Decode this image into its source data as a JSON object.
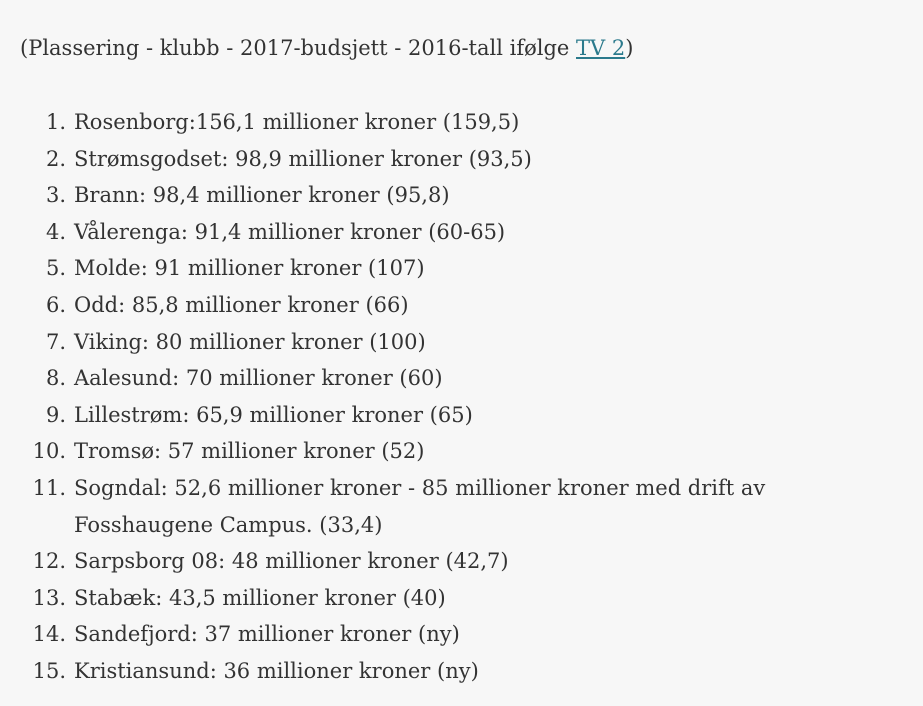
{
  "intro": {
    "prefix": "(Plassering - klubb - 2017-budsjett - 2016-tall ifølge ",
    "link_text": "TV 2",
    "suffix": ")"
  },
  "items": [
    {
      "number": "1.",
      "text": "Rosenborg:156,1 millioner kroner (159,5)"
    },
    {
      "number": "2.",
      "text": "Strømsgodset: 98,9 millioner kroner (93,5)"
    },
    {
      "number": "3.",
      "text": "Brann: 98,4 millioner kroner (95,8)"
    },
    {
      "number": "4.",
      "text": "Vålerenga: 91,4 millioner kroner (60-65)"
    },
    {
      "number": "5.",
      "text": "Molde: 91 millioner kroner (107)"
    },
    {
      "number": "6.",
      "text": "Odd: 85,8 millioner kroner (66)"
    },
    {
      "number": "7.",
      "text": "Viking: 80 millioner kroner (100)"
    },
    {
      "number": "8.",
      "text": "Aalesund: 70 millioner kroner (60)"
    },
    {
      "number": "9.",
      "text": "Lillestrøm: 65,9 millioner kroner (65)"
    },
    {
      "number": "10.",
      "text": "Tromsø: 57 millioner kroner (52)"
    },
    {
      "number": "11.",
      "text": "Sogndal: 52,6 millioner kroner - 85 millioner kroner med drift av Fosshaugene Campus. (33,4)"
    },
    {
      "number": "12.",
      "text": "Sarpsborg 08: 48 millioner kroner (42,7)"
    },
    {
      "number": "13.",
      "text": "Stabæk: 43,5 millioner kroner (40)"
    },
    {
      "number": "14.",
      "text": "Sandefjord: 37 millioner kroner (ny)"
    },
    {
      "number": "15.",
      "text": "Kristiansund: 36 millioner kroner (ny)"
    }
  ]
}
